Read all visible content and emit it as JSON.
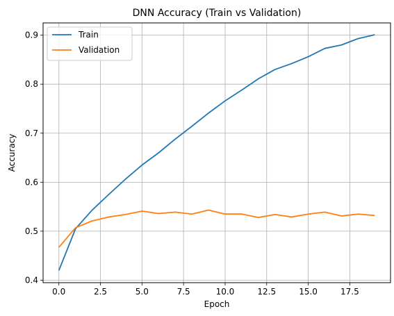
{
  "chart_data": {
    "type": "line",
    "title": "DNN Accuracy (Train vs Validation)",
    "xlabel": "Epoch",
    "ylabel": "Accuracy",
    "xlim": [
      -0.95,
      19.95
    ],
    "ylim": [
      0.395,
      0.925
    ],
    "xticks": [
      0,
      2.5,
      5,
      7.5,
      10,
      12.5,
      15,
      17.5
    ],
    "xtick_labels": [
      "0.0",
      "2.5",
      "5.0",
      "7.5",
      "10.0",
      "12.5",
      "15.0",
      "17.5"
    ],
    "yticks": [
      0.4,
      0.5,
      0.6,
      0.7,
      0.8,
      0.9
    ],
    "ytick_labels": [
      "0.4",
      "0.5",
      "0.6",
      "0.7",
      "0.8",
      "0.9"
    ],
    "grid": true,
    "legend_position": "top-left",
    "x": [
      0,
      1,
      2,
      3,
      4,
      5,
      6,
      7,
      8,
      9,
      10,
      11,
      12,
      13,
      14,
      15,
      16,
      17,
      18,
      19
    ],
    "series": [
      {
        "name": "Train",
        "color": "#1f77b4",
        "values": [
          0.42,
          0.505,
          0.543,
          0.575,
          0.606,
          0.635,
          0.66,
          0.688,
          0.714,
          0.741,
          0.766,
          0.788,
          0.811,
          0.83,
          0.842,
          0.856,
          0.873,
          0.88,
          0.893,
          0.901
        ]
      },
      {
        "name": "Validation",
        "color": "#ff7f0e",
        "values": [
          0.467,
          0.507,
          0.521,
          0.529,
          0.534,
          0.541,
          0.536,
          0.539,
          0.535,
          0.543,
          0.535,
          0.535,
          0.528,
          0.534,
          0.529,
          0.535,
          0.539,
          0.531,
          0.535,
          0.532
        ]
      }
    ]
  }
}
